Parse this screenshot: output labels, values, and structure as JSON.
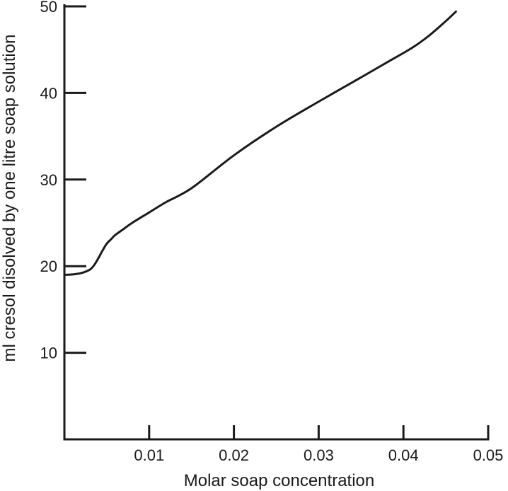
{
  "chart_data": {
    "type": "line",
    "title": "",
    "xlabel": "Molar soap concentration",
    "ylabel": "ml cresol disolved by one litre soap solution",
    "xlim": [
      0,
      0.05
    ],
    "ylim": [
      0,
      50
    ],
    "x_ticks": [
      0.01,
      0.02,
      0.03,
      0.04,
      0.05
    ],
    "x_tick_labels": [
      "0.01",
      "0.02",
      "0.03",
      "0.04",
      "0.05"
    ],
    "y_ticks": [
      10,
      20,
      30,
      40,
      50
    ],
    "y_tick_labels": [
      "10",
      "20",
      "30",
      "40",
      "50"
    ],
    "grid": false,
    "legend": "none",
    "line_color": "#1a1a1a",
    "series": [
      {
        "x": [
          0.0,
          0.001,
          0.002,
          0.003,
          0.0035,
          0.004,
          0.0045,
          0.005,
          0.0055,
          0.006,
          0.007,
          0.008,
          0.01,
          0.012,
          0.015,
          0.02,
          0.025,
          0.03,
          0.035,
          0.038,
          0.041,
          0.043,
          0.045,
          0.0462
        ],
        "y": [
          19.0,
          19.05,
          19.2,
          19.6,
          20.1,
          20.9,
          21.8,
          22.6,
          23.1,
          23.6,
          24.3,
          25.0,
          26.2,
          27.4,
          29.0,
          32.8,
          36.1,
          39.0,
          41.8,
          43.5,
          45.2,
          46.6,
          48.3,
          49.4
        ]
      }
    ]
  }
}
